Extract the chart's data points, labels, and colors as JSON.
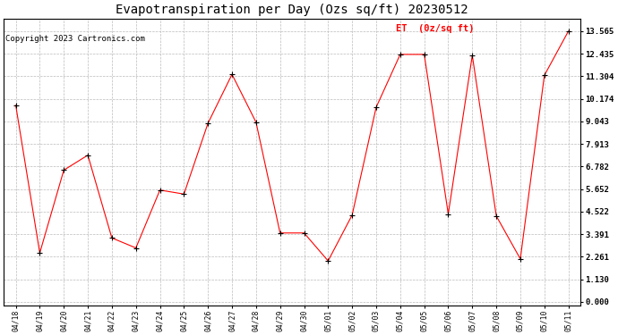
{
  "title": "Evapotranspiration per Day (Ozs sq/ft) 20230512",
  "copyright_text": "Copyright 2023 Cartronics.com",
  "legend_label": "ET  (0z/sq ft)",
  "dates": [
    "04/18",
    "04/19",
    "04/20",
    "04/21",
    "04/22",
    "04/23",
    "04/24",
    "04/25",
    "04/26",
    "04/27",
    "04/28",
    "04/29",
    "04/30",
    "05/01",
    "05/02",
    "05/03",
    "05/04",
    "05/05",
    "05/06",
    "05/07",
    "05/08",
    "05/09",
    "05/10",
    "05/11"
  ],
  "values": [
    9.85,
    2.45,
    6.6,
    7.35,
    3.2,
    2.7,
    5.6,
    5.4,
    8.95,
    11.4,
    9.0,
    3.45,
    3.45,
    2.05,
    4.35,
    9.75,
    12.4,
    12.4,
    4.4,
    12.35,
    4.3,
    2.15,
    11.35,
    13.565
  ],
  "yticks": [
    0.0,
    1.13,
    2.261,
    3.391,
    4.522,
    5.652,
    6.782,
    7.913,
    9.043,
    10.174,
    11.304,
    12.435,
    13.565
  ],
  "ylim": [
    -0.2,
    14.2
  ],
  "line_color": "red",
  "marker": "+",
  "marker_color": "black",
  "grid_color": "#bbbbbb",
  "bg_color": "white",
  "title_fontsize": 10,
  "copyright_fontsize": 6.5,
  "legend_color": "red",
  "legend_fontsize": 7.5,
  "tick_fontsize": 6.5,
  "xtick_fontsize": 5.8
}
